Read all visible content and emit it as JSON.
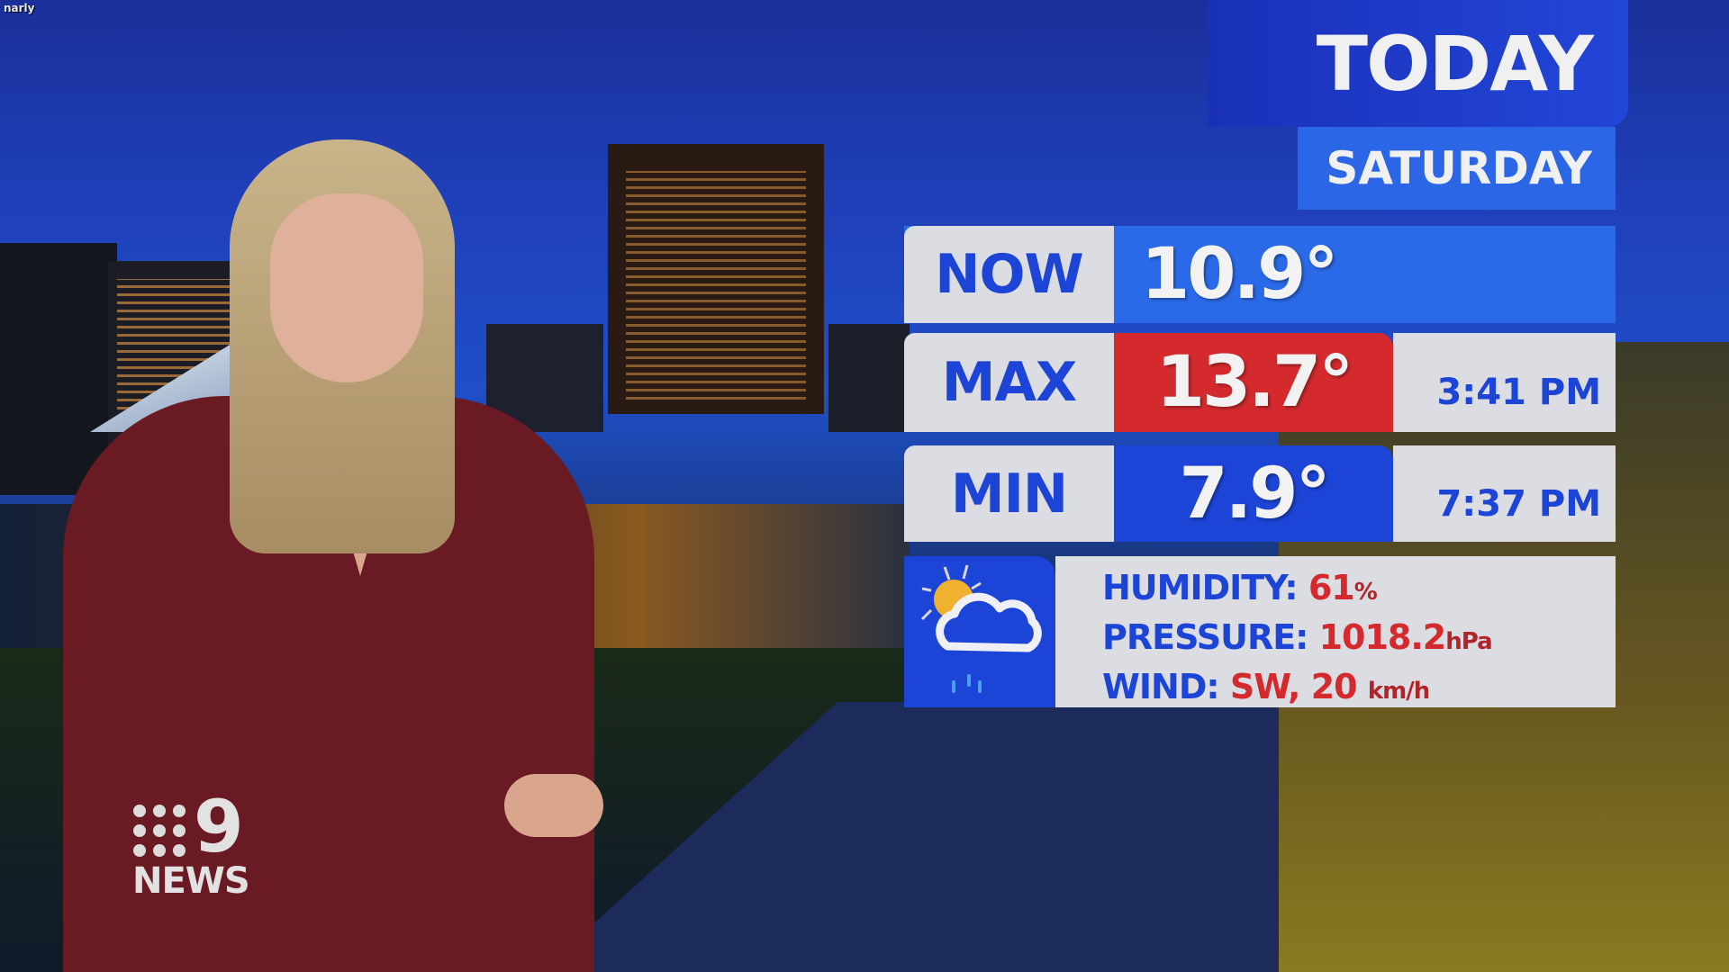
{
  "caption": "narly",
  "weather": {
    "title": "TODAY",
    "day": "SATURDAY",
    "now": {
      "label": "NOW",
      "value": "10.9°"
    },
    "max": {
      "label": "MAX",
      "value": "13.7°",
      "time": "3:41 PM"
    },
    "min": {
      "label": "MIN",
      "value": "7.9°",
      "time": "7:37 PM"
    },
    "conditions_icon": "partly-cloudy-showers-icon",
    "humidity": {
      "label": "HUMIDITY:",
      "value": "61",
      "unit": "%"
    },
    "pressure": {
      "label": "PRESSURE:",
      "value": "1018.2",
      "unit": "hPa"
    },
    "wind": {
      "label": "WIND:",
      "value": "SW, 20",
      "unit": "km/h"
    }
  },
  "logo": {
    "number": "9",
    "text": "NEWS"
  },
  "colors": {
    "blue": "#1c44d6",
    "dark_blue": "#1a2fb0",
    "red": "#d42a2e",
    "light_panel": "#dcdde2"
  }
}
